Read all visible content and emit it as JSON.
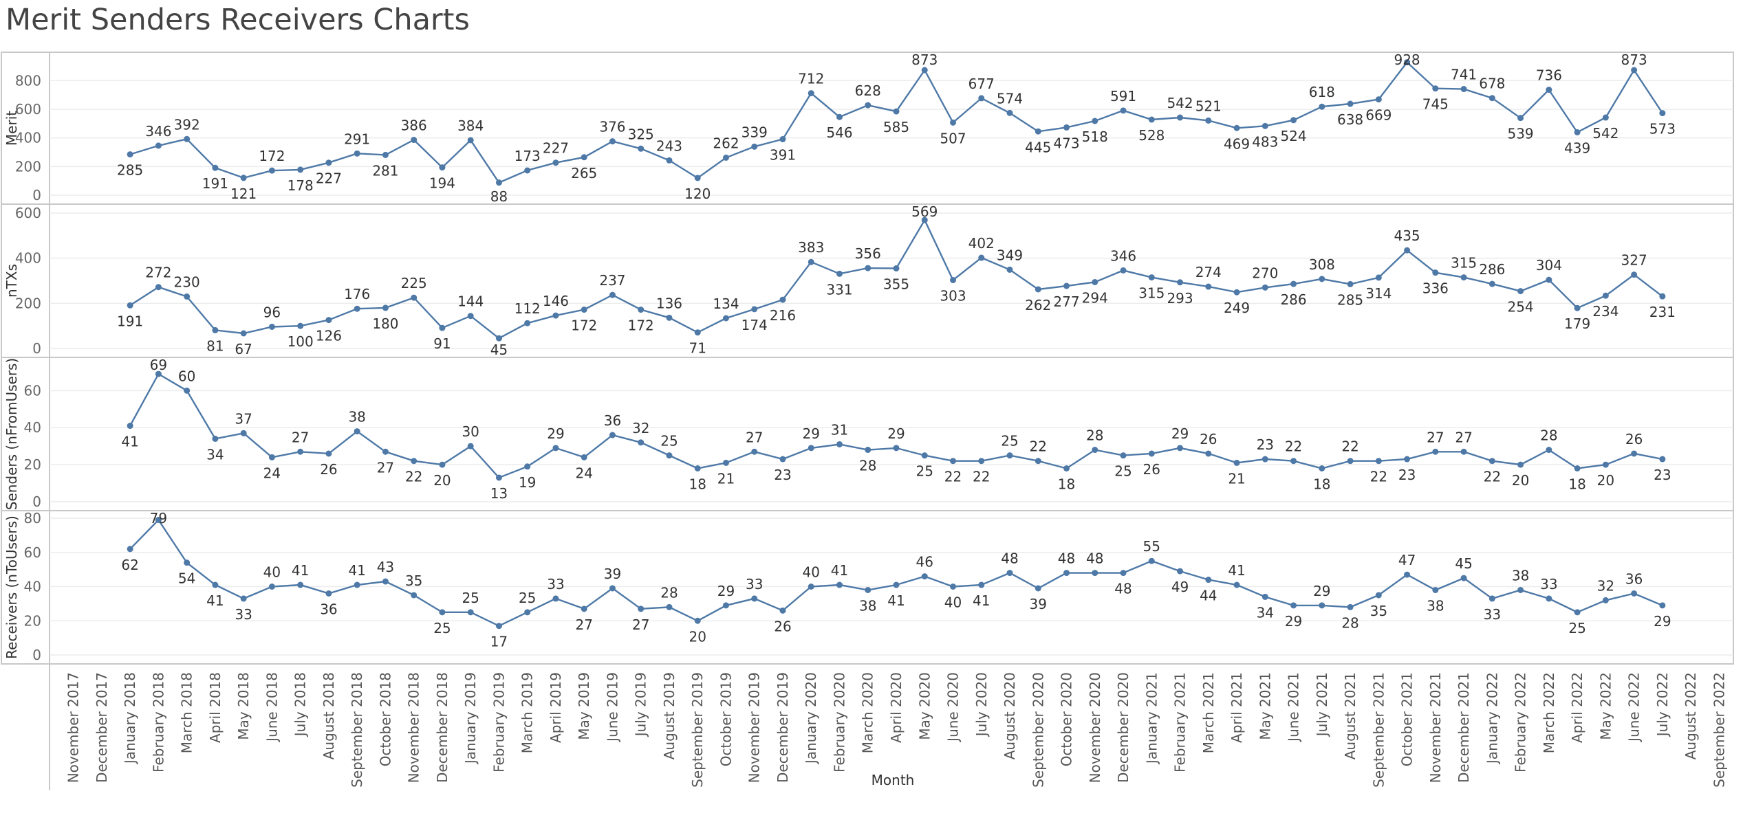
{
  "title": "Merit Senders Receivers Charts",
  "colors": {
    "line": "#4e79a7",
    "grid": "#ececec",
    "frame": "#c8c8c8"
  },
  "chart_data": {
    "type": "line",
    "xlabel": "Month",
    "x": [
      "November 2017",
      "December 2017",
      "January 2018",
      "February 2018",
      "March 2018",
      "April 2018",
      "May 2018",
      "June 2018",
      "July 2018",
      "August 2018",
      "September 2018",
      "October 2018",
      "November 2018",
      "December 2018",
      "January 2019",
      "February 2019",
      "March 2019",
      "April 2019",
      "May 2019",
      "June 2019",
      "July 2019",
      "August 2019",
      "September 2019",
      "October 2019",
      "November 2019",
      "December 2019",
      "January 2020",
      "February 2020",
      "March 2020",
      "April 2020",
      "May 2020",
      "June 2020",
      "July 2020",
      "August 2020",
      "September 2020",
      "October 2020",
      "November 2020",
      "December 2020",
      "January 2021",
      "February 2021",
      "March 2021",
      "April 2021",
      "May 2021",
      "June 2021",
      "July 2021",
      "August 2021",
      "September 2021",
      "October 2021",
      "November 2021",
      "December 2021",
      "January 2022",
      "February 2022",
      "March 2022",
      "April 2022",
      "May 2022",
      "June 2022",
      "July 2022",
      "August 2022",
      "September 2022"
    ],
    "grid": true,
    "series": [
      {
        "name": "Merit",
        "ticks": [
          0,
          200,
          400,
          600,
          800
        ],
        "ylim": [
          0,
          950
        ],
        "values": [
          null,
          null,
          285,
          346,
          392,
          191,
          121,
          172,
          178,
          227,
          291,
          281,
          386,
          194,
          384,
          88,
          173,
          227,
          265,
          376,
          325,
          243,
          120,
          262,
          339,
          391,
          712,
          546,
          628,
          585,
          873,
          507,
          677,
          574,
          445,
          473,
          518,
          591,
          528,
          542,
          521,
          469,
          483,
          524,
          618,
          638,
          669,
          928,
          745,
          741,
          678,
          539,
          736,
          439,
          542,
          873,
          573,
          null,
          null
        ]
      },
      {
        "name": "nTXs",
        "ticks": [
          0,
          200,
          400,
          600
        ],
        "ylim": [
          0,
          600
        ],
        "values": [
          null,
          null,
          191,
          272,
          230,
          81,
          67,
          96,
          100,
          126,
          176,
          180,
          225,
          91,
          144,
          45,
          112,
          146,
          172,
          237,
          172,
          136,
          71,
          134,
          174,
          216,
          383,
          331,
          356,
          355,
          569,
          303,
          402,
          349,
          262,
          277,
          294,
          346,
          315,
          293,
          274,
          249,
          270,
          286,
          308,
          285,
          314,
          435,
          336,
          315,
          286,
          254,
          304,
          179,
          234,
          327,
          231,
          null,
          null
        ]
      },
      {
        "name": "Senders (nFromUsers)",
        "ticks": [
          0,
          20,
          40,
          60
        ],
        "ylim": [
          0,
          72
        ],
        "values": [
          null,
          null,
          41,
          69,
          60,
          34,
          37,
          24,
          27,
          26,
          38,
          27,
          22,
          20,
          30,
          13,
          19,
          29,
          24,
          36,
          32,
          25,
          18,
          21,
          27,
          23,
          29,
          31,
          28,
          29,
          25,
          22,
          22,
          25,
          22,
          18,
          28,
          25,
          26,
          29,
          26,
          21,
          23,
          22,
          18,
          22,
          22,
          23,
          27,
          27,
          22,
          20,
          28,
          18,
          20,
          26,
          23,
          null,
          null
        ]
      },
      {
        "name": "Receivers (nToUsers)",
        "ticks": [
          0,
          20,
          40,
          60,
          80
        ],
        "ylim": [
          0,
          80
        ],
        "values": [
          null,
          null,
          62,
          79,
          54,
          41,
          33,
          40,
          41,
          36,
          41,
          43,
          35,
          25,
          25,
          17,
          25,
          33,
          27,
          39,
          27,
          28,
          20,
          29,
          33,
          26,
          40,
          41,
          38,
          41,
          46,
          40,
          41,
          48,
          39,
          48,
          48,
          48,
          55,
          49,
          44,
          41,
          34,
          29,
          29,
          28,
          35,
          47,
          38,
          45,
          33,
          38,
          33,
          25,
          32,
          36,
          29,
          null,
          null
        ]
      }
    ]
  }
}
